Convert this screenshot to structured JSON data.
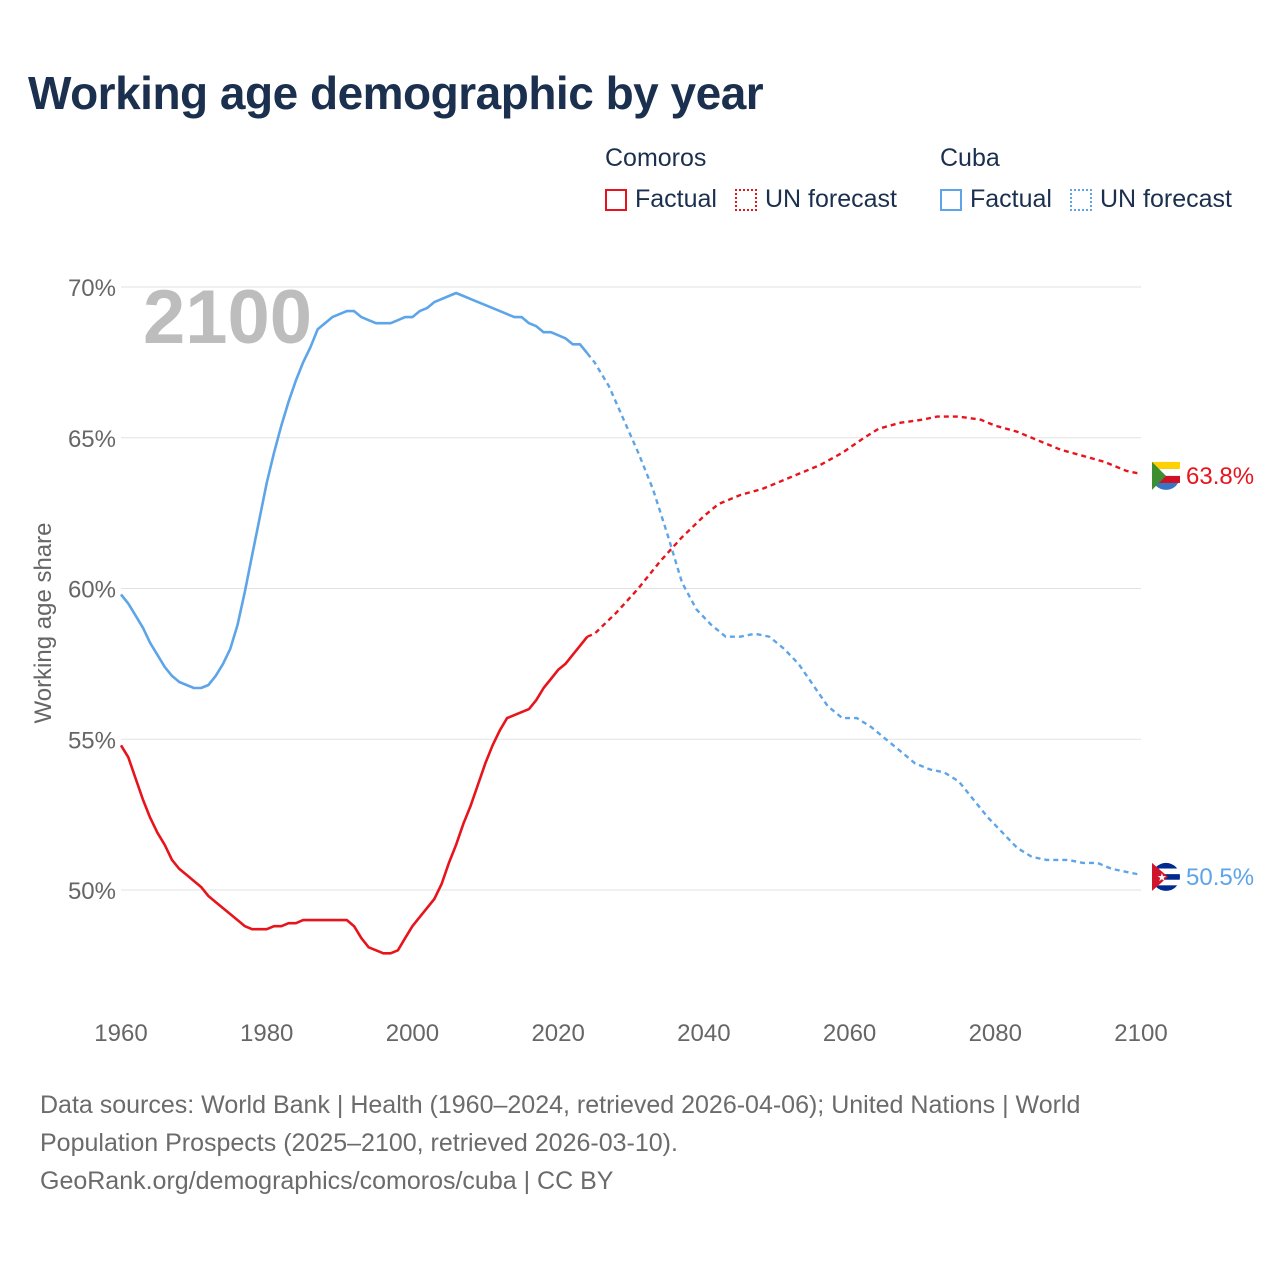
{
  "title": "Working age demographic by year",
  "legend": {
    "groups": [
      {
        "name": "Comoros",
        "color": "#e8141c",
        "factual_label": "Factual",
        "forecast_label": "UN forecast"
      },
      {
        "name": "Cuba",
        "color": "#5da5e8",
        "factual_label": "Factual",
        "forecast_label": "UN forecast"
      }
    ]
  },
  "year_watermark": "2100",
  "footer": {
    "line1": "Data sources: World Bank | Health (1960–2024, retrieved 2026-04-06); United Nations | World",
    "line2": "Population Prospects (2025–2100, retrieved 2026-03-10).",
    "line3": "GeoRank.org/demographics/comoros/cuba | CC BY"
  },
  "chart_data": {
    "type": "line",
    "title": "Working age demographic by year",
    "xlabel": "",
    "ylabel": "Working age share",
    "xlim": [
      1960,
      2100
    ],
    "ylim": [
      46.5,
      71
    ],
    "x_ticks": [
      1960,
      1980,
      2000,
      2020,
      2040,
      2060,
      2080,
      2100
    ],
    "y_ticks": [
      {
        "value": 50,
        "label": "50%"
      },
      {
        "value": 55,
        "label": "55%"
      },
      {
        "value": 60,
        "label": "60%"
      },
      {
        "value": 65,
        "label": "65%"
      },
      {
        "value": 70,
        "label": "70%"
      }
    ],
    "grid": true,
    "factual_range": [
      1960,
      2024
    ],
    "forecast_range": [
      2024,
      2100
    ],
    "series": [
      {
        "name": "Comoros",
        "color": "#e8141c",
        "end_label": "63.8%",
        "points": [
          [
            1960,
            54.8
          ],
          [
            1961,
            54.4
          ],
          [
            1962,
            53.7
          ],
          [
            1963,
            53.0
          ],
          [
            1964,
            52.4
          ],
          [
            1965,
            51.9
          ],
          [
            1966,
            51.5
          ],
          [
            1967,
            51.0
          ],
          [
            1968,
            50.7
          ],
          [
            1969,
            50.5
          ],
          [
            1970,
            50.3
          ],
          [
            1971,
            50.1
          ],
          [
            1972,
            49.8
          ],
          [
            1973,
            49.6
          ],
          [
            1974,
            49.4
          ],
          [
            1975,
            49.2
          ],
          [
            1976,
            49.0
          ],
          [
            1977,
            48.8
          ],
          [
            1978,
            48.7
          ],
          [
            1979,
            48.7
          ],
          [
            1980,
            48.7
          ],
          [
            1981,
            48.8
          ],
          [
            1982,
            48.8
          ],
          [
            1983,
            48.9
          ],
          [
            1984,
            48.9
          ],
          [
            1985,
            49.0
          ],
          [
            1986,
            49.0
          ],
          [
            1987,
            49.0
          ],
          [
            1988,
            49.0
          ],
          [
            1989,
            49.0
          ],
          [
            1990,
            49.0
          ],
          [
            1991,
            49.0
          ],
          [
            1992,
            48.8
          ],
          [
            1993,
            48.4
          ],
          [
            1994,
            48.1
          ],
          [
            1995,
            48.0
          ],
          [
            1996,
            47.9
          ],
          [
            1997,
            47.9
          ],
          [
            1998,
            48.0
          ],
          [
            1999,
            48.4
          ],
          [
            2000,
            48.8
          ],
          [
            2001,
            49.1
          ],
          [
            2002,
            49.4
          ],
          [
            2003,
            49.7
          ],
          [
            2004,
            50.2
          ],
          [
            2005,
            50.9
          ],
          [
            2006,
            51.5
          ],
          [
            2007,
            52.2
          ],
          [
            2008,
            52.8
          ],
          [
            2009,
            53.5
          ],
          [
            2010,
            54.2
          ],
          [
            2011,
            54.8
          ],
          [
            2012,
            55.3
          ],
          [
            2013,
            55.7
          ],
          [
            2014,
            55.8
          ],
          [
            2015,
            55.9
          ],
          [
            2016,
            56.0
          ],
          [
            2017,
            56.3
          ],
          [
            2018,
            56.7
          ],
          [
            2019,
            57.0
          ],
          [
            2020,
            57.3
          ],
          [
            2021,
            57.5
          ],
          [
            2022,
            57.8
          ],
          [
            2023,
            58.1
          ],
          [
            2024,
            58.4
          ],
          [
            2025,
            58.5
          ],
          [
            2028,
            59.2
          ],
          [
            2031,
            60.0
          ],
          [
            2034,
            60.9
          ],
          [
            2037,
            61.7
          ],
          [
            2040,
            62.4
          ],
          [
            2042,
            62.8
          ],
          [
            2045,
            63.1
          ],
          [
            2048,
            63.3
          ],
          [
            2050,
            63.5
          ],
          [
            2053,
            63.8
          ],
          [
            2056,
            64.1
          ],
          [
            2059,
            64.5
          ],
          [
            2062,
            65.0
          ],
          [
            2064,
            65.3
          ],
          [
            2067,
            65.5
          ],
          [
            2070,
            65.6
          ],
          [
            2072,
            65.7
          ],
          [
            2075,
            65.7
          ],
          [
            2078,
            65.6
          ],
          [
            2080,
            65.4
          ],
          [
            2083,
            65.2
          ],
          [
            2086,
            64.9
          ],
          [
            2089,
            64.6
          ],
          [
            2092,
            64.4
          ],
          [
            2095,
            64.2
          ],
          [
            2098,
            63.9
          ],
          [
            2100,
            63.8
          ]
        ]
      },
      {
        "name": "Cuba",
        "color": "#5da5e8",
        "end_label": "50.5%",
        "points": [
          [
            1960,
            59.8
          ],
          [
            1961,
            59.5
          ],
          [
            1962,
            59.1
          ],
          [
            1963,
            58.7
          ],
          [
            1964,
            58.2
          ],
          [
            1965,
            57.8
          ],
          [
            1966,
            57.4
          ],
          [
            1967,
            57.1
          ],
          [
            1968,
            56.9
          ],
          [
            1969,
            56.8
          ],
          [
            1970,
            56.7
          ],
          [
            1971,
            56.7
          ],
          [
            1972,
            56.8
          ],
          [
            1973,
            57.1
          ],
          [
            1974,
            57.5
          ],
          [
            1975,
            58.0
          ],
          [
            1976,
            58.8
          ],
          [
            1977,
            59.9
          ],
          [
            1978,
            61.1
          ],
          [
            1979,
            62.3
          ],
          [
            1980,
            63.5
          ],
          [
            1981,
            64.5
          ],
          [
            1982,
            65.4
          ],
          [
            1983,
            66.2
          ],
          [
            1984,
            66.9
          ],
          [
            1985,
            67.5
          ],
          [
            1986,
            68.0
          ],
          [
            1987,
            68.6
          ],
          [
            1988,
            68.8
          ],
          [
            1989,
            69.0
          ],
          [
            1990,
            69.1
          ],
          [
            1991,
            69.2
          ],
          [
            1992,
            69.2
          ],
          [
            1993,
            69.0
          ],
          [
            1994,
            68.9
          ],
          [
            1995,
            68.8
          ],
          [
            1996,
            68.8
          ],
          [
            1997,
            68.8
          ],
          [
            1998,
            68.9
          ],
          [
            1999,
            69.0
          ],
          [
            2000,
            69.0
          ],
          [
            2001,
            69.2
          ],
          [
            2002,
            69.3
          ],
          [
            2003,
            69.5
          ],
          [
            2004,
            69.6
          ],
          [
            2005,
            69.7
          ],
          [
            2006,
            69.8
          ],
          [
            2007,
            69.7
          ],
          [
            2008,
            69.6
          ],
          [
            2009,
            69.5
          ],
          [
            2010,
            69.4
          ],
          [
            2011,
            69.3
          ],
          [
            2012,
            69.2
          ],
          [
            2013,
            69.1
          ],
          [
            2014,
            69.0
          ],
          [
            2015,
            69.0
          ],
          [
            2016,
            68.8
          ],
          [
            2017,
            68.7
          ],
          [
            2018,
            68.5
          ],
          [
            2019,
            68.5
          ],
          [
            2020,
            68.4
          ],
          [
            2021,
            68.3
          ],
          [
            2022,
            68.1
          ],
          [
            2023,
            68.1
          ],
          [
            2024,
            67.8
          ],
          [
            2025,
            67.5
          ],
          [
            2027,
            66.7
          ],
          [
            2029,
            65.6
          ],
          [
            2031,
            64.5
          ],
          [
            2033,
            63.3
          ],
          [
            2035,
            61.8
          ],
          [
            2037,
            60.2
          ],
          [
            2039,
            59.3
          ],
          [
            2041,
            58.8
          ],
          [
            2043,
            58.4
          ],
          [
            2045,
            58.4
          ],
          [
            2047,
            58.5
          ],
          [
            2049,
            58.4
          ],
          [
            2051,
            58.0
          ],
          [
            2053,
            57.5
          ],
          [
            2055,
            56.8
          ],
          [
            2057,
            56.1
          ],
          [
            2059,
            55.7
          ],
          [
            2061,
            55.7
          ],
          [
            2063,
            55.4
          ],
          [
            2065,
            55.0
          ],
          [
            2067,
            54.6
          ],
          [
            2069,
            54.2
          ],
          [
            2071,
            54.0
          ],
          [
            2073,
            53.9
          ],
          [
            2075,
            53.6
          ],
          [
            2077,
            53.0
          ],
          [
            2079,
            52.4
          ],
          [
            2081,
            51.9
          ],
          [
            2083,
            51.4
          ],
          [
            2085,
            51.1
          ],
          [
            2087,
            51.0
          ],
          [
            2090,
            51.0
          ],
          [
            2092,
            50.9
          ],
          [
            2094,
            50.9
          ],
          [
            2096,
            50.7
          ],
          [
            2098,
            50.6
          ],
          [
            2100,
            50.5
          ]
        ]
      }
    ]
  }
}
